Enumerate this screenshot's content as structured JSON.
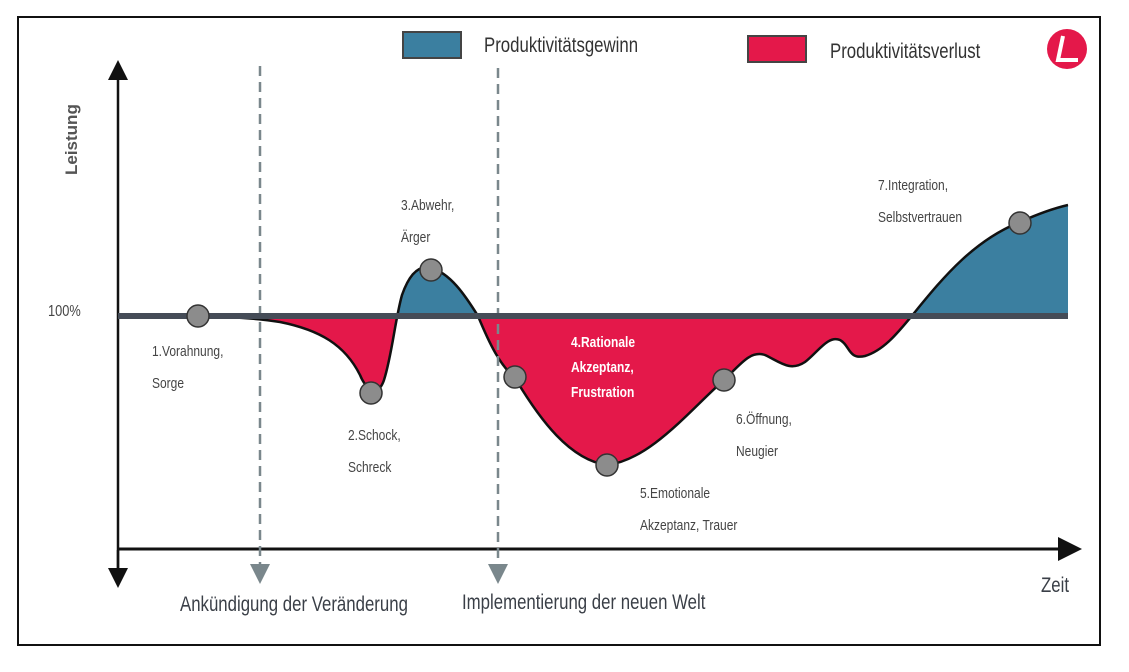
{
  "legend": [
    {
      "label": "Produktivitätsgewinn",
      "color": "#3b7fa0"
    },
    {
      "label": "Produktivitätsverlust",
      "color": "#e4184a"
    }
  ],
  "logo": {
    "text": "L",
    "color": "#e4184a"
  },
  "axes": {
    "y_label": "Leistung",
    "x_label": "Zeit",
    "baseline_label": "100%"
  },
  "markers": [
    {
      "label": "Ankündigung der Veränderung"
    },
    {
      "label": "Implementierung der neuen Welt"
    }
  ],
  "stages": [
    {
      "line1": "1.Vorahnung,",
      "line2": "Sorge"
    },
    {
      "line1": "2.Schock,",
      "line2": "Schreck"
    },
    {
      "line1": "3.Abwehr,",
      "line2": "Ärger"
    },
    {
      "line1": "4.Rationale",
      "line2": "Akzeptanz,",
      "line3": "Frustration"
    },
    {
      "line1": "5.Emotionale",
      "line2": "Akzeptanz, Trauer"
    },
    {
      "line1": "6.Öffnung,",
      "line2": "Neugier"
    },
    {
      "line1": "7.Integration,",
      "line2": "Selbstvertrauen"
    }
  ],
  "colors": {
    "axis": "#111",
    "baseline": "#454c57",
    "node": "#8c8c8c",
    "dashed": "#7a878c"
  }
}
